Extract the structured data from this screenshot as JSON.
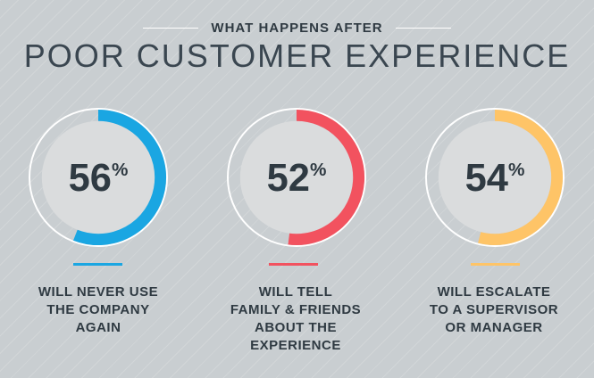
{
  "header": {
    "eyebrow": "WHAT HAPPENS AFTER",
    "title": "POOR CUSTOMER EXPERIENCE"
  },
  "stats": [
    {
      "value": "56",
      "percent_sign": "%",
      "fraction": 0.56,
      "color": "#1aa6e2",
      "caption": [
        "WILL NEVER USE",
        "THE COMPANY",
        "AGAIN"
      ]
    },
    {
      "value": "52",
      "percent_sign": "%",
      "fraction": 0.52,
      "color": "#f2525f",
      "caption": [
        "WILL TELL",
        "FAMILY & FRIENDS",
        "ABOUT THE",
        "EXPERIENCE"
      ]
    },
    {
      "value": "54",
      "percent_sign": "%",
      "fraction": 0.54,
      "color": "#fec467",
      "caption": [
        "WILL ESCALATE",
        "TO A SUPERVISOR",
        "OR MANAGER"
      ]
    }
  ]
}
